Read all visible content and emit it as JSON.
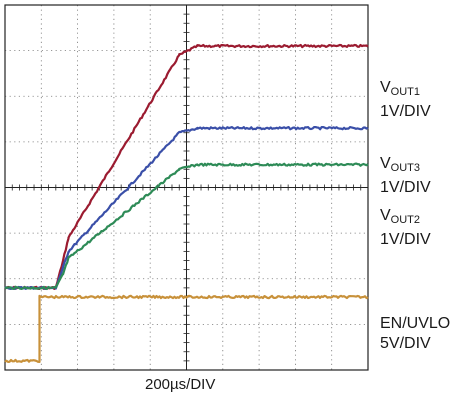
{
  "chart_data": {
    "type": "line",
    "grid": true,
    "x_divisions": 10,
    "y_divisions": 8,
    "xlabel": "200µs/DIV",
    "series": [
      {
        "name": "VOUT1",
        "label_main": "V",
        "label_sub": "OUT1",
        "scale": "1V/DIV",
        "color": "#9b1b30",
        "points": [
          [
            0,
            6.2
          ],
          [
            1.4,
            6.2
          ],
          [
            1.6,
            5.6
          ],
          [
            1.75,
            5.1
          ],
          [
            4.8,
            1.1
          ],
          [
            5.3,
            0.9
          ],
          [
            10,
            0.9
          ]
        ]
      },
      {
        "name": "VOUT3",
        "label_main": "V",
        "label_sub": "OUT3",
        "scale": "1V/DIV",
        "color": "#3a4fa8",
        "points": [
          [
            0,
            6.2
          ],
          [
            1.4,
            6.2
          ],
          [
            1.6,
            5.75
          ],
          [
            1.75,
            5.4
          ],
          [
            4.8,
            2.8
          ],
          [
            5.3,
            2.7
          ],
          [
            10,
            2.7
          ]
        ]
      },
      {
        "name": "VOUT2",
        "label_main": "V",
        "label_sub": "OUT2",
        "scale": "1V/DIV",
        "color": "#2e8b57",
        "points": [
          [
            0,
            6.2
          ],
          [
            1.4,
            6.2
          ],
          [
            1.6,
            5.9
          ],
          [
            1.75,
            5.55
          ],
          [
            4.8,
            3.6
          ],
          [
            5.3,
            3.5
          ],
          [
            10,
            3.5
          ]
        ]
      },
      {
        "name": "EN/UVLO",
        "label_main": "EN/UVLO",
        "label_sub": "",
        "scale": "5V/DIV",
        "color": "#c8913a",
        "points": [
          [
            0,
            7.8
          ],
          [
            0.95,
            7.8
          ],
          [
            0.95,
            6.4
          ],
          [
            10,
            6.4
          ]
        ]
      }
    ]
  }
}
